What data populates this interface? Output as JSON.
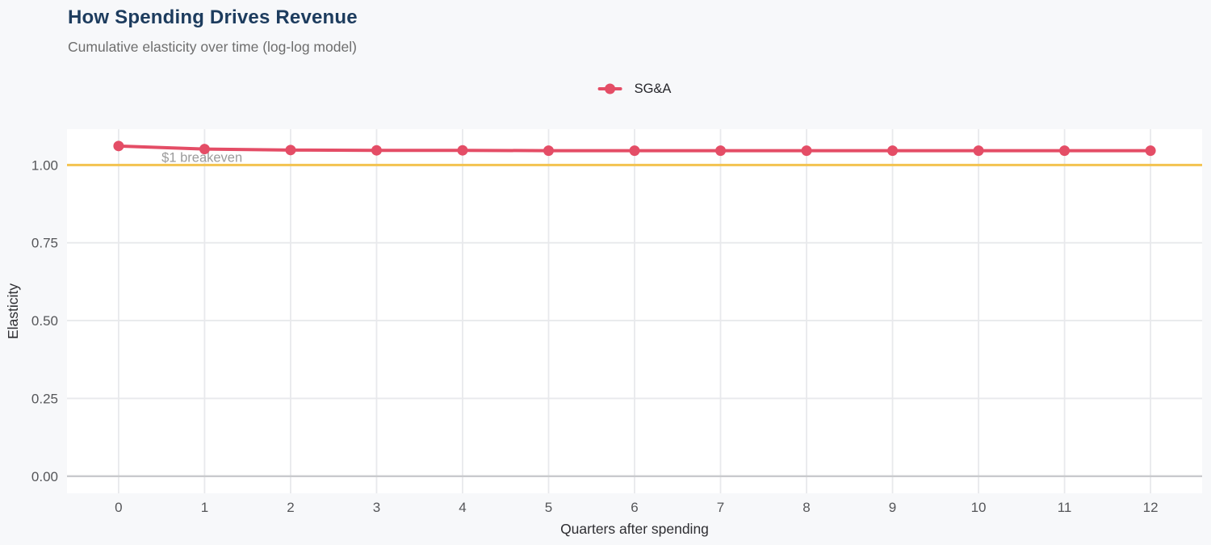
{
  "header": {
    "title": "How Spending Drives Revenue",
    "subtitle": "Cumulative elasticity over time (log-log model)"
  },
  "legend": {
    "items": [
      {
        "label": "SG&A",
        "color": "#e44d66"
      }
    ]
  },
  "chart_data": {
    "type": "line",
    "x": [
      0,
      1,
      2,
      3,
      4,
      5,
      6,
      7,
      8,
      9,
      10,
      11,
      12
    ],
    "xtick_labels": [
      "0",
      "1",
      "2",
      "3",
      "4",
      "5",
      "6",
      "7",
      "8",
      "9",
      "10",
      "11",
      "12"
    ],
    "series": [
      {
        "name": "SG&A",
        "color": "#e44d66",
        "values": [
          1.061,
          1.051,
          1.048,
          1.047,
          1.047,
          1.046,
          1.046,
          1.046,
          1.046,
          1.046,
          1.046,
          1.046,
          1.046
        ]
      }
    ],
    "title": "How Spending Drives Revenue",
    "subtitle": "Cumulative elasticity over time (log-log model)",
    "xlabel": "Quarters after spending",
    "ylabel": "Elasticity",
    "xlim": [
      -0.6,
      12.6
    ],
    "ylim": [
      -0.055,
      1.115
    ],
    "yticks": [
      0,
      0.25,
      0.5,
      0.75,
      1
    ],
    "ytick_labels": [
      "0.00",
      "0.25",
      "0.50",
      "0.75",
      "1.00"
    ],
    "grid": true,
    "legend_position": "top-center",
    "reference_line": {
      "y": 1.0,
      "color": "#f3c34f"
    },
    "annotation": {
      "text": "$1 breakeven",
      "x": 0.5,
      "y": 1.0,
      "color": "#9b9b9b"
    },
    "colors": {
      "background": "#f7f8fa",
      "panel": "#ffffff",
      "grid": "#e8e9ec",
      "axis_line": "#c9cacd",
      "tick_label": "#555659",
      "axis_title": "#2e2e32",
      "title": "#1d3c5e",
      "subtitle": "#6e6e6e"
    }
  }
}
